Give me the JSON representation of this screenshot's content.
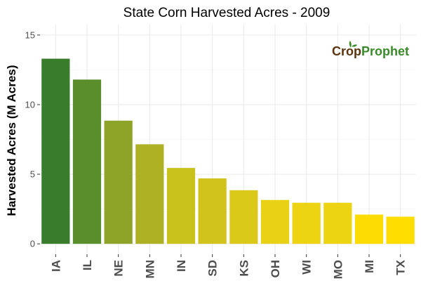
{
  "chart_data": {
    "type": "bar",
    "title": "State Corn Harvested Acres - 2009",
    "xlabel": "",
    "ylabel": "Harvested Acres (M Acres)",
    "categories": [
      "IA",
      "IL",
      "NE",
      "MN",
      "IN",
      "SD",
      "KS",
      "OH",
      "WI",
      "MO",
      "MI",
      "TX"
    ],
    "values": [
      13.3,
      11.8,
      8.85,
      7.15,
      5.45,
      4.7,
      3.85,
      3.15,
      2.95,
      2.95,
      2.1,
      1.95
    ],
    "bar_colors": [
      "#387c2c",
      "#5a8e2c",
      "#8ea429",
      "#afb125",
      "#c9c11c",
      "#d1c31b",
      "#dbc919",
      "#e9d215",
      "#ecd412",
      "#ecd412",
      "#fcdc02",
      "#ffdd00"
    ],
    "ylim": [
      -0.75,
      15.75
    ],
    "yticks": [
      0,
      5,
      10,
      15
    ],
    "grid": true
  },
  "logo": {
    "crop": "Crop",
    "prophet": "Prophet",
    "crop_color": "#5a3510",
    "prophet_color": "#3a8a2a"
  }
}
